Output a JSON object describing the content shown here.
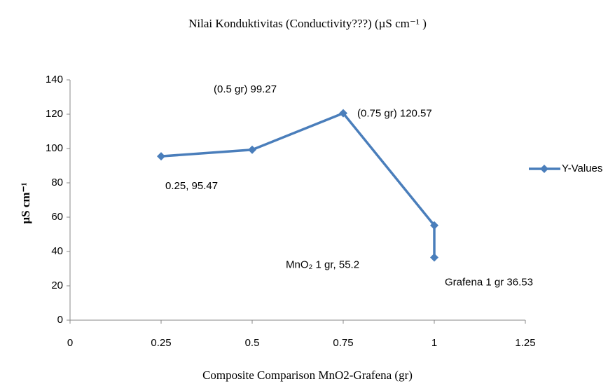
{
  "chart_data": {
    "type": "scatter-line",
    "title": "Nilai Konduktivitas (Conductivity???) (µS cm⁻¹ )",
    "x_label": "Composite Comparison MnO2-Grafena (gr)",
    "y_label": "µS cm⁻¹",
    "xlim": [
      0,
      1.25
    ],
    "xticks": [
      0,
      0.25,
      0.5,
      0.75,
      1,
      1.25
    ],
    "ylim": [
      0,
      140
    ],
    "yticks": [
      0,
      20,
      40,
      60,
      80,
      100,
      120,
      140
    ],
    "grid": false,
    "legend": "right",
    "series": [
      {
        "name": "Y-Values",
        "color": "#4a7ebb",
        "x": [
          0.25,
          0.5,
          0.75,
          1,
          1
        ],
        "values": [
          95.47,
          99.27,
          120.57,
          55.2,
          36.53
        ],
        "value_labels": [
          "0.25, 95.47",
          "(0.5 gr) 99.27",
          "(0.75 gr) 120.57",
          "MnO₂ 1 gr, 55.2",
          "Grafena 1 gr 36.53"
        ]
      }
    ]
  }
}
